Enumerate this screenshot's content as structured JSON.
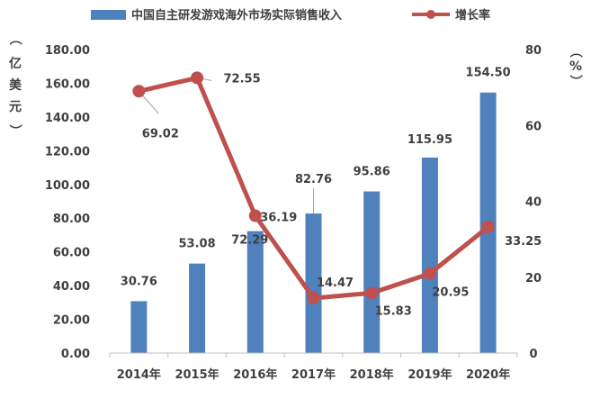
{
  "chart_data": {
    "type": "bar+line",
    "categories": [
      "2014年",
      "2015年",
      "2016年",
      "2017年",
      "2018年",
      "2019年",
      "2020年"
    ],
    "series": [
      {
        "name": "中国自主研发游戏海外市场实际销售收入",
        "type": "bar",
        "axis": "left",
        "values": [
          30.76,
          53.08,
          72.29,
          82.76,
          95.86,
          115.95,
          154.5
        ],
        "labels": [
          "30.76",
          "53.08",
          "72.29",
          "82.76",
          "95.86",
          "115.95",
          "154.50"
        ],
        "color": "#4f81bd"
      },
      {
        "name": "增长率",
        "type": "line",
        "axis": "right",
        "values": [
          69.02,
          72.55,
          36.19,
          14.47,
          15.83,
          20.95,
          33.25
        ],
        "labels": [
          "69.02",
          "72.55",
          "36.19",
          "14.47",
          "15.83",
          "20.95",
          "33.25"
        ],
        "color": "#c0504d"
      }
    ],
    "y_left": {
      "label": "（亿美元）",
      "label_chars": [
        "（",
        "亿",
        "美",
        "元",
        "）"
      ],
      "ylim": [
        0,
        180
      ],
      "ticks": [
        "0.00",
        "20.00",
        "40.00",
        "60.00",
        "80.00",
        "100.00",
        "120.00",
        "140.00",
        "160.00",
        "180.00"
      ]
    },
    "y_right": {
      "label": "（%）",
      "label_chars": [
        "（",
        "%",
        "）"
      ],
      "ylim": [
        0,
        80
      ],
      "ticks": [
        "0",
        "20",
        "40",
        "60",
        "80"
      ]
    },
    "grid": false,
    "legend_position": "top"
  }
}
